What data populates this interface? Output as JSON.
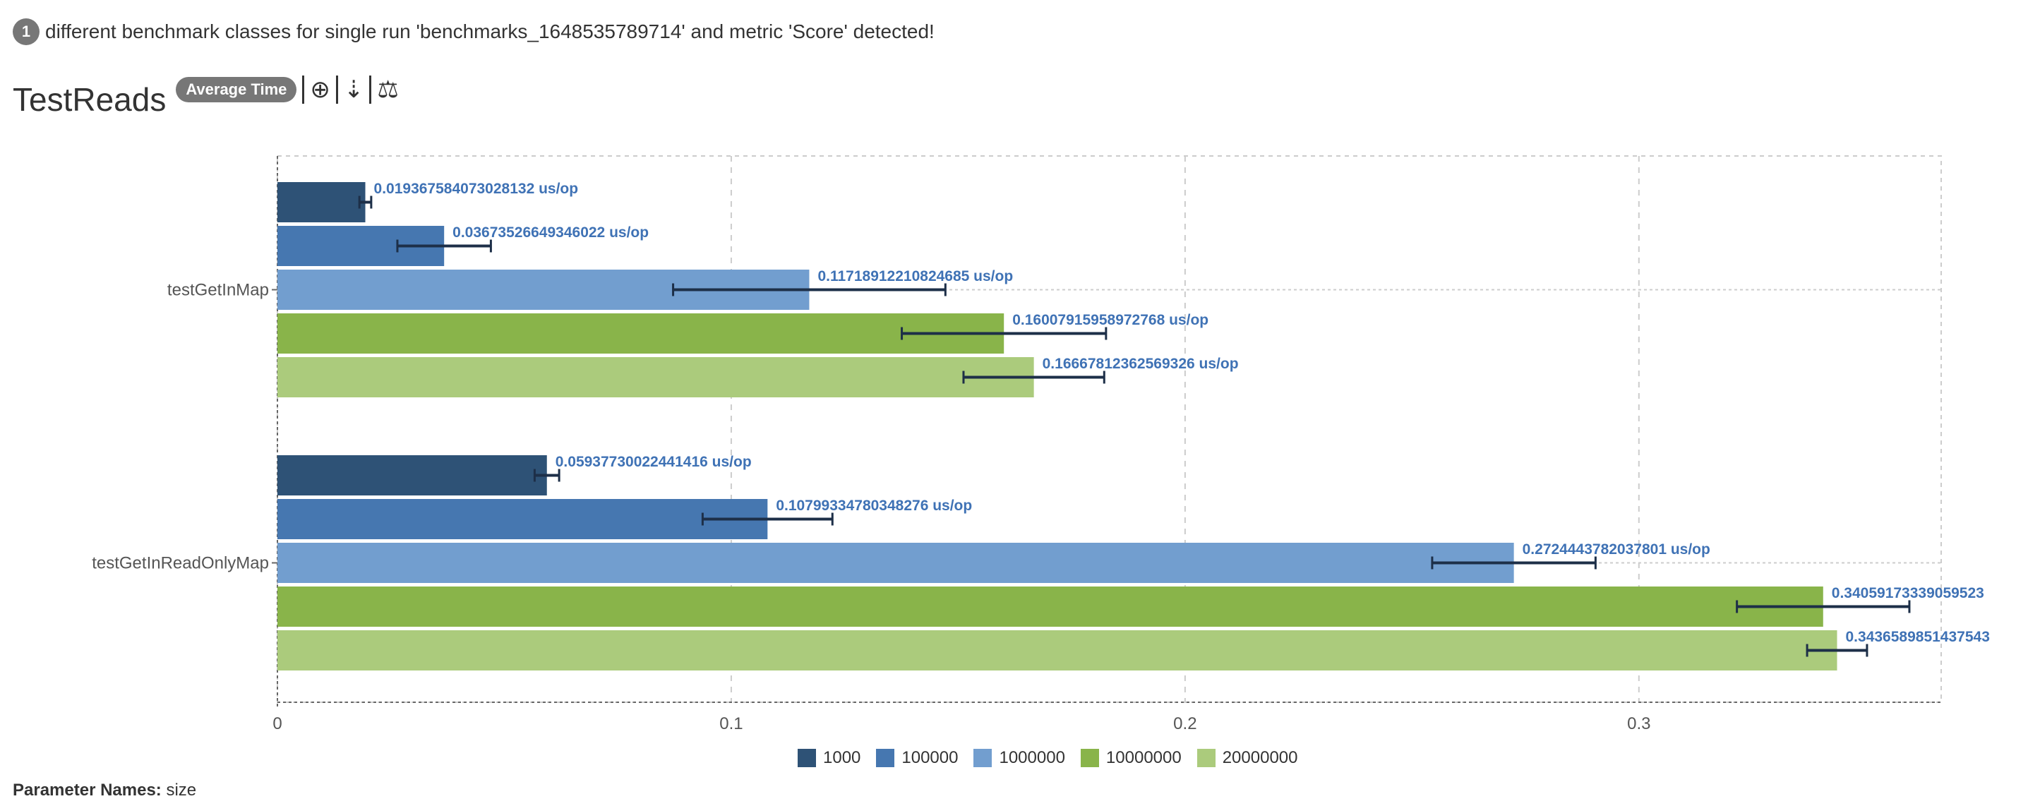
{
  "notice": {
    "count": "1",
    "text": "different benchmark classes for single run 'benchmarks_1648535789714' and metric 'Score' detected!"
  },
  "header": {
    "title": "TestReads",
    "mode_badge": "Average Time",
    "tools": [
      {
        "icon": "zoom-in-icon",
        "glyph": "⊕"
      },
      {
        "icon": "sort-icon",
        "glyph": "⇣"
      },
      {
        "icon": "balance-scale-icon",
        "glyph": "⚖"
      }
    ]
  },
  "chart_data": {
    "type": "bar",
    "orientation": "horizontal",
    "categories": [
      "testGetInMap",
      "testGetInReadOnlyMap"
    ],
    "xlim": [
      0,
      0.3666
    ],
    "xticks": [
      "0",
      "0.1",
      "0.2",
      "0.3"
    ],
    "xtick_values": [
      0,
      0.1,
      0.2,
      0.3
    ],
    "grid": true,
    "legend_position": "bottom-center",
    "unit": "us/op",
    "series": [
      {
        "name": "1000",
        "color": "#2e5276",
        "values": [
          0.019367584073028132,
          0.05937730022441416
        ],
        "errors": [
          0.0013,
          0.0027
        ],
        "labels": [
          "0.019367584073028132 us/op",
          "0.05937730022441416 us/op"
        ]
      },
      {
        "name": "100000",
        "color": "#4677b0",
        "values": [
          0.03673526649346022,
          0.10799334780348276
        ],
        "errors": [
          0.0103,
          0.0143
        ],
        "labels": [
          "0.03673526649346022 us/op",
          "0.10799334780348276 us/op"
        ]
      },
      {
        "name": "1000000",
        "color": "#729ecf",
        "values": [
          0.11718912210824685,
          0.2724443782037801
        ],
        "errors": [
          0.03,
          0.018
        ],
        "labels": [
          "0.11718912210824685 us/op",
          "0.2724443782037801 us/op"
        ]
      },
      {
        "name": "10000000",
        "color": "#89b44a",
        "values": [
          0.16007915958972768,
          0.34059173339059523
        ],
        "errors": [
          0.0225,
          0.019
        ],
        "labels": [
          "0.16007915958972768 us/op",
          "0.34059173339059523"
        ]
      },
      {
        "name": "20000000",
        "color": "#abcb7c",
        "values": [
          0.16667812362569326,
          0.3436589851437543
        ],
        "errors": [
          0.0155,
          0.0066
        ],
        "labels": [
          "0.16667812362569326 us/op",
          "0.3436589851437543"
        ]
      }
    ]
  },
  "footer": {
    "param_label": "Parameter Names:",
    "param_value": "size"
  }
}
